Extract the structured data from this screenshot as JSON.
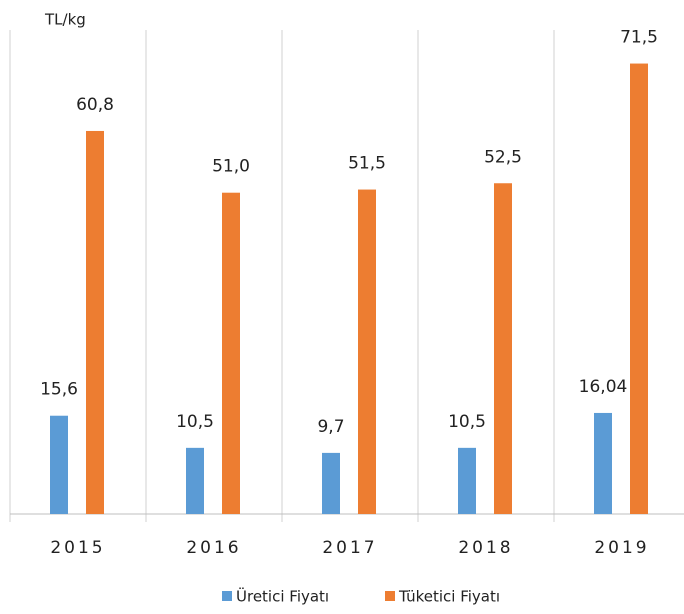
{
  "chart_data": {
    "type": "bar",
    "y_axis_label": "TL/kg",
    "categories": [
      "2015",
      "2016",
      "2017",
      "2018",
      "2019"
    ],
    "series": [
      {
        "name": "Üretici Fiyatı",
        "color": "#5b9bd5",
        "values": [
          15.6,
          10.5,
          9.7,
          10.5,
          16.04
        ],
        "value_labels": [
          "15,6",
          "10,5",
          "9,7",
          "10,5",
          "16,04"
        ]
      },
      {
        "name": "Tüketici Fiyatı",
        "color": "#ed7d31",
        "values": [
          60.8,
          51.0,
          51.5,
          52.5,
          71.5
        ],
        "value_labels": [
          "60,8",
          "51,0",
          "51,5",
          "52,5",
          "71,5"
        ]
      }
    ],
    "ylim": [
      0,
      80
    ]
  }
}
